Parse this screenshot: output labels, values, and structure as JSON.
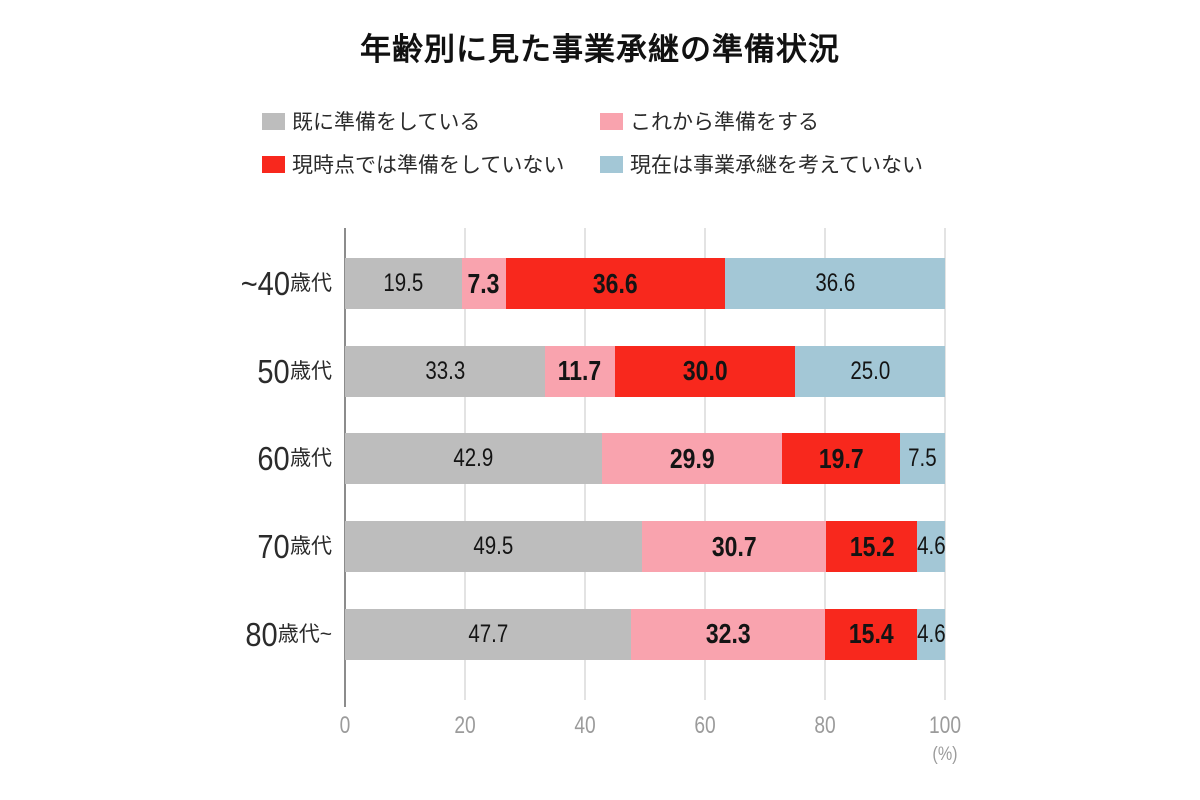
{
  "title": "年齢別に見た事業承継の準備状況",
  "unit_label": "(%)",
  "colors": {
    "already_preparing": "#bdbdbd",
    "will_prepare": "#f9a3ae",
    "not_preparing_now": "#f8281d",
    "not_considering": "#a3c7d6",
    "gridline": "#e3e3e3",
    "axis_line": "#8c8c8c",
    "tick_text": "#9b9b9b",
    "value_text": "#141414",
    "background": "#ffffff"
  },
  "legend": {
    "items": [
      {
        "label": "既に準備をしている",
        "color": "#bdbdbd"
      },
      {
        "label": "これから準備をする",
        "color": "#f9a3ae"
      },
      {
        "label": "現時点では準備をしていない",
        "color": "#f8281d"
      },
      {
        "label": "現在は事業承継を考えていない",
        "color": "#a3c7d6"
      }
    ]
  },
  "category_labels": [
    {
      "num": "~40",
      "suffix": "歳代"
    },
    {
      "num": "50",
      "suffix": "歳代"
    },
    {
      "num": "60",
      "suffix": "歳代"
    },
    {
      "num": "70",
      "suffix": "歳代"
    },
    {
      "num": "80",
      "suffix": "歳代~"
    }
  ],
  "chart_data": {
    "type": "bar",
    "orientation": "horizontal",
    "stacked": true,
    "title": "年齢別に見た事業承継の準備状況",
    "categories": [
      "~40歳代",
      "50歳代",
      "60歳代",
      "70歳代",
      "80歳代~"
    ],
    "series": [
      {
        "name": "既に準備をしている",
        "color": "#bdbdbd",
        "bold_labels": false,
        "values": [
          19.5,
          33.3,
          42.9,
          49.5,
          47.7
        ],
        "labels": [
          "19.5",
          "33.3",
          "42.9",
          "49.5",
          "47.7"
        ]
      },
      {
        "name": "これから準備をする",
        "color": "#f9a3ae",
        "bold_labels": true,
        "values": [
          7.3,
          11.7,
          29.9,
          30.7,
          32.3
        ],
        "labels": [
          "7.3",
          "11.7",
          "29.9",
          "30.7",
          "32.3"
        ]
      },
      {
        "name": "現時点では準備をしていない",
        "color": "#f8281d",
        "bold_labels": true,
        "values": [
          36.6,
          30.0,
          19.7,
          15.2,
          15.4
        ],
        "labels": [
          "36.6",
          "30.0",
          "19.7",
          "15.2",
          "15.4"
        ]
      },
      {
        "name": "現在は事業承継を考えていない",
        "color": "#a3c7d6",
        "bold_labels": false,
        "values": [
          36.6,
          25.0,
          7.5,
          4.6,
          4.6
        ],
        "labels": [
          "36.6",
          "25.0",
          "7.5",
          "4.6",
          "4.6"
        ]
      }
    ],
    "x_ticks": [
      0,
      20,
      40,
      60,
      80,
      100
    ],
    "xlim": [
      0,
      100
    ],
    "xlabel": "(%)",
    "ylabel": "",
    "grid": true,
    "legend_position": "top"
  }
}
